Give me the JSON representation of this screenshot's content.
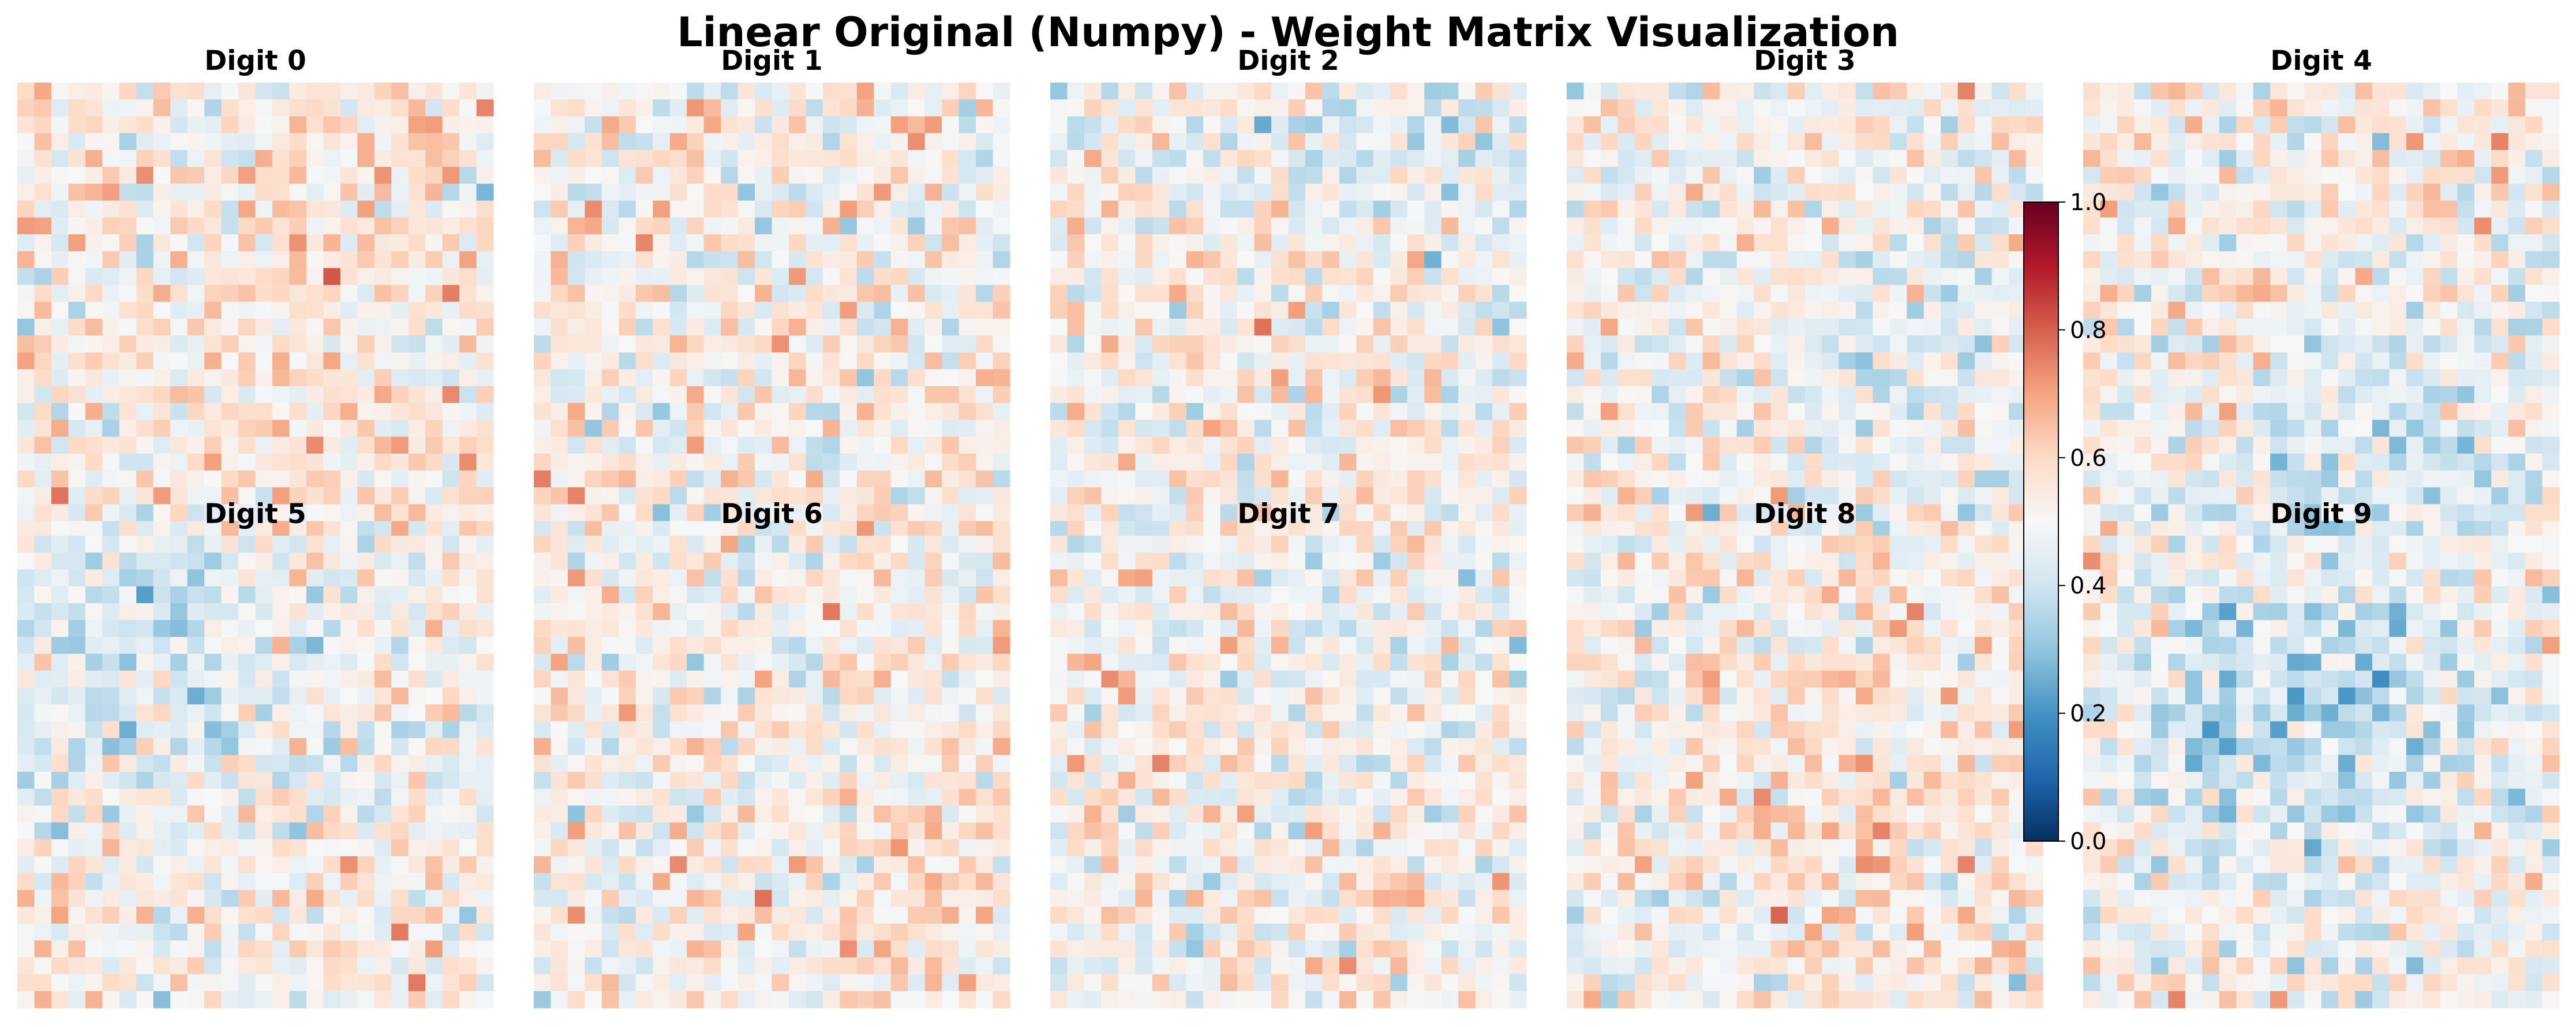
{
  "chart_data": {
    "type": "heatmap",
    "title": "Linear Original (Numpy) - Weight Matrix Visualization",
    "panels": [
      {
        "title": "Digit 0"
      },
      {
        "title": "Digit 1"
      },
      {
        "title": "Digit 2"
      },
      {
        "title": "Digit 3"
      },
      {
        "title": "Digit 4"
      },
      {
        "title": "Digit 5"
      },
      {
        "title": "Digit 6"
      },
      {
        "title": "Digit 7"
      },
      {
        "title": "Digit 8"
      },
      {
        "title": "Digit 9"
      }
    ],
    "grid_size": [
      28,
      28
    ],
    "colormap": "RdBu_r",
    "value_range": [
      0.0,
      1.0
    ],
    "colorbar": {
      "ticks": [
        0.0,
        0.2,
        0.4,
        0.6,
        0.8,
        1.0
      ],
      "tick_labels": [
        "0.0",
        "0.2",
        "0.4",
        "0.6",
        "0.8",
        "1.0"
      ]
    },
    "grid": false,
    "axes_visible": false
  }
}
